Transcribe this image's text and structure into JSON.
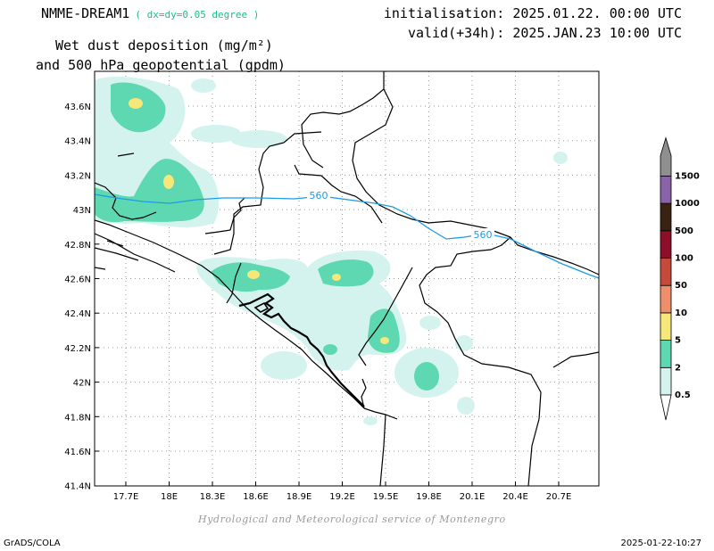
{
  "header": {
    "model_name": "NMME-DREAM1",
    "resolution": "( dx=dy=0.05 degree )",
    "title_line1": "Wet dust deposition (mg/m²)",
    "title_line2": "and 500 hPa geopotential (gpdm)",
    "init_line": "initialisation: 2025.01.22. 00:00 UTC",
    "valid_line": "valid(+34h): 2025.JAN.23 10:00 UTC"
  },
  "footer": {
    "credit": "Hydrological and Meteorological service of Montenegro",
    "software": "GrADS/COLA",
    "timestamp": "2025-01-22-10:27"
  },
  "map": {
    "lon_ticks": [
      "17.7E",
      "18E",
      "18.3E",
      "18.6E",
      "18.9E",
      "19.2E",
      "19.5E",
      "19.8E",
      "20.1E",
      "20.4E",
      "20.7E"
    ],
    "lat_ticks": [
      "43.6N",
      "43.4N",
      "43.2N",
      "43N",
      "42.8N",
      "42.6N",
      "42.4N",
      "42.2N",
      "42N",
      "41.8N",
      "41.6N",
      "41.4N"
    ],
    "contour_label": "560",
    "colors": {
      "land_line": "#000000",
      "contour": "#1e9be8",
      "grid": "#9a9a9a"
    }
  },
  "colorbar": {
    "levels": [
      {
        "label": "0.5",
        "color": "#d4f3ef"
      },
      {
        "label": "2",
        "color": "#5ed8b0"
      },
      {
        "label": "5",
        "color": "#f5e77a"
      },
      {
        "label": "10",
        "color": "#ee8f6c"
      },
      {
        "label": "50",
        "color": "#c44a3a"
      },
      {
        "label": "100",
        "color": "#8c0f2a"
      },
      {
        "label": "500",
        "color": "#3a2212"
      },
      {
        "label": "1000",
        "color": "#8a62a8"
      },
      {
        "label": "1500",
        "color": "#8f8f8f"
      }
    ]
  }
}
